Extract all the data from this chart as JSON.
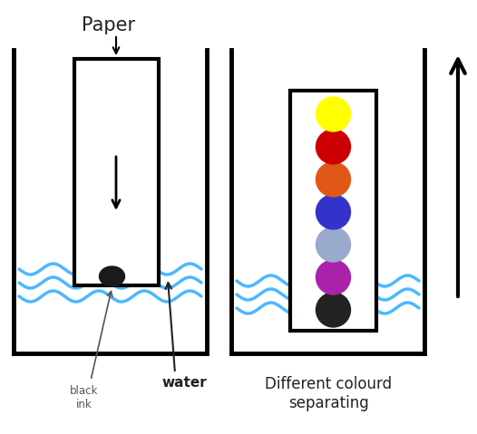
{
  "bg_color": "#ffffff",
  "paper_label": "Paper",
  "black_ink_label": "black\nink",
  "water_label": "water",
  "different_colours_label": "Different colourd\nseparating",
  "wave_color": "#4db8ff",
  "beaker_color": "#000000",
  "paper_strip_color": "#ffffff",
  "paper_strip_border": "#000000",
  "black_dot_color": "#1a1a1a",
  "dot_colors": [
    "#ffff00",
    "#cc0000",
    "#e05818",
    "#3333cc",
    "#99aacc",
    "#aa22aa",
    "#222222"
  ],
  "arrow_color": "#000000",
  "label_color_small": "#555555",
  "label_color_bold": "#222222"
}
